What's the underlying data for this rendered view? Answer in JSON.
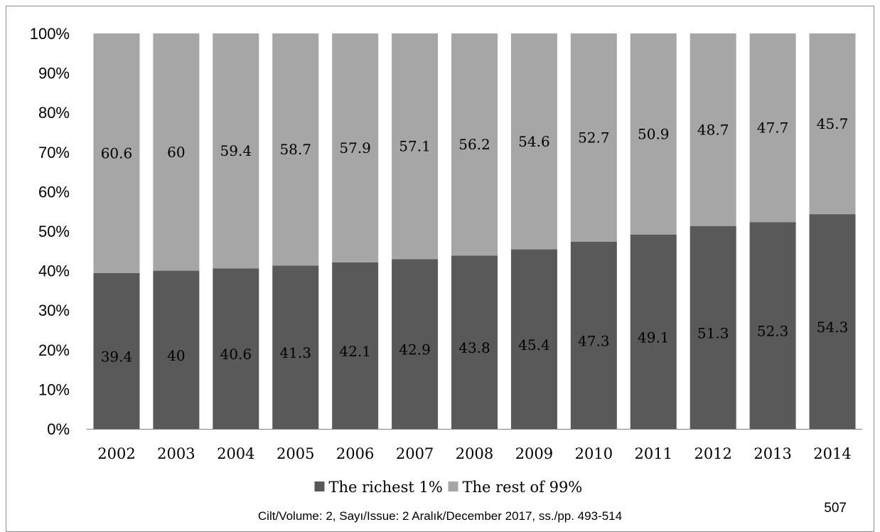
{
  "chart_data": {
    "type": "bar",
    "stacked": true,
    "normalized": true,
    "title": "",
    "xlabel": "",
    "ylabel": "",
    "ylim": [
      0,
      100
    ],
    "yticks": [
      "0%",
      "10%",
      "20%",
      "30%",
      "40%",
      "50%",
      "60%",
      "70%",
      "80%",
      "90%",
      "100%"
    ],
    "categories": [
      "2002",
      "2003",
      "2004",
      "2005",
      "2006",
      "2007",
      "2008",
      "2009",
      "2010",
      "2011",
      "2012",
      "2013",
      "2014"
    ],
    "series": [
      {
        "name": "The richest 1%",
        "color": "#595959",
        "values": [
          39.4,
          40,
          40.6,
          41.3,
          42.1,
          42.9,
          43.8,
          45.4,
          47.3,
          49.1,
          51.3,
          52.3,
          54.3
        ]
      },
      {
        "name": "The rest of 99%",
        "color": "#a6a6a6",
        "values": [
          60.6,
          60,
          59.4,
          58.7,
          57.9,
          57.1,
          56.2,
          54.6,
          52.7,
          50.9,
          48.7,
          47.7,
          45.7
        ]
      }
    ],
    "legend_position": "bottom",
    "grid": false
  },
  "footer": {
    "journal": "Cilt/Volume: 2, Sayı/Issue: 2 Aralık/December 2017, ss./pp. 493-514",
    "page_number": "507"
  }
}
